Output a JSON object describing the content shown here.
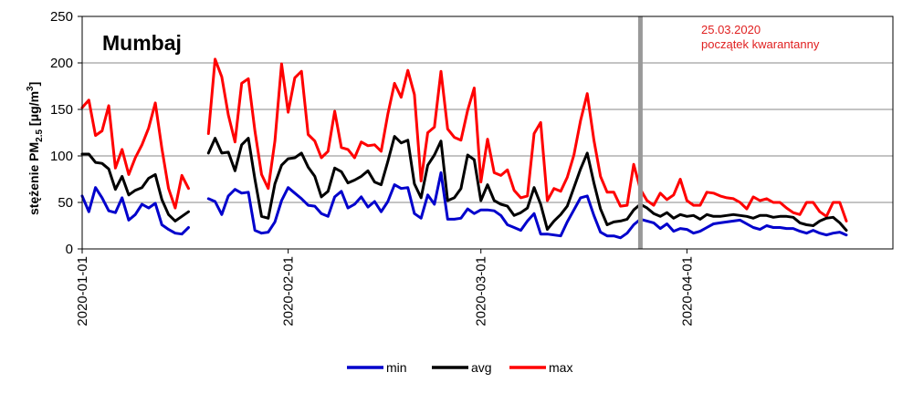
{
  "chart_data": {
    "type": "line",
    "title": "Mumbaj",
    "ylabel_main": "stężenie PM",
    "ylabel_sub": "2.5",
    "ylabel_unit": " [μg/m",
    "ylabel_sup": "3",
    "ylabel_close": "]",
    "ylim": [
      0,
      250
    ],
    "yticks": [
      0,
      50,
      100,
      150,
      200,
      250
    ],
    "xlim": [
      0,
      122
    ],
    "grid": true,
    "legend_position": "bottom-center",
    "x_ticks": [
      {
        "x": 0,
        "label": "2020-01-01"
      },
      {
        "x": 31,
        "label": "2020-02-01"
      },
      {
        "x": 60,
        "label": "2020-03-01"
      },
      {
        "x": 91,
        "label": "2020-04-01"
      }
    ],
    "event": {
      "x": 84,
      "line1": "25.03.2020",
      "line2": "początek kwarantanny"
    },
    "colors": {
      "min": "#0000cc",
      "avg": "#000000",
      "max": "#ff0000",
      "event": "#999999",
      "annotation": "#e02020"
    },
    "series": [
      {
        "name": "min",
        "key": "min",
        "values": [
          57,
          40,
          66,
          55,
          41,
          39,
          55,
          31,
          37,
          48,
          44,
          49,
          26,
          21,
          17,
          16,
          23,
          null,
          null,
          54,
          51,
          37,
          57,
          64,
          60,
          61,
          20,
          17,
          18,
          29,
          52,
          66,
          60,
          54,
          47,
          46,
          38,
          35,
          56,
          62,
          44,
          48,
          56,
          45,
          51,
          40,
          51,
          69,
          65,
          66,
          38,
          33,
          58,
          48,
          82,
          32,
          32,
          33,
          43,
          38,
          42,
          42,
          41,
          36,
          26,
          23,
          20,
          30,
          38,
          16,
          16,
          15,
          14,
          29,
          42,
          55,
          57,
          36,
          18,
          14,
          14,
          12,
          17,
          26,
          32,
          30,
          28,
          22,
          27,
          19,
          22,
          21,
          17,
          19,
          23,
          27,
          28,
          29,
          30,
          31,
          27,
          23,
          21,
          25,
          23,
          23,
          22,
          22,
          19,
          17,
          20,
          17,
          15,
          17,
          18,
          15
        ],
        "note": "values per day index 0..115"
      },
      {
        "name": "avg",
        "key": "avg",
        "values": [
          102,
          102,
          93,
          92,
          86,
          64,
          78,
          58,
          63,
          66,
          76,
          80,
          53,
          37,
          30,
          35,
          40,
          null,
          null,
          103,
          119,
          103,
          104,
          84,
          112,
          119,
          75,
          35,
          33,
          70,
          90,
          97,
          98,
          103,
          88,
          78,
          56,
          62,
          87,
          83,
          71,
          74,
          78,
          84,
          72,
          69,
          94,
          121,
          114,
          117,
          70,
          55,
          90,
          101,
          116,
          52,
          55,
          65,
          101,
          96,
          52,
          69,
          52,
          48,
          46,
          36,
          39,
          44,
          66,
          48,
          21,
          30,
          37,
          46,
          66,
          86,
          103,
          71,
          43,
          26,
          29,
          30,
          32,
          42,
          48,
          44,
          38,
          35,
          39,
          33,
          37,
          35,
          36,
          32,
          37,
          35,
          35,
          36,
          37,
          36,
          35,
          33,
          36,
          36,
          34,
          35,
          35,
          34,
          28,
          26,
          25,
          30,
          33,
          34,
          28,
          20
        ]
      },
      {
        "name": "max",
        "key": "max",
        "values": [
          152,
          160,
          122,
          127,
          154,
          87,
          107,
          80,
          98,
          112,
          130,
          157,
          108,
          65,
          44,
          79,
          65,
          null,
          null,
          124,
          204,
          185,
          144,
          115,
          178,
          183,
          127,
          80,
          65,
          116,
          199,
          147,
          184,
          191,
          123,
          116,
          98,
          105,
          148,
          109,
          107,
          98,
          115,
          111,
          112,
          105,
          145,
          178,
          163,
          192,
          166,
          73,
          125,
          131,
          191,
          129,
          120,
          117,
          149,
          173,
          72,
          118,
          82,
          79,
          85,
          63,
          55,
          57,
          124,
          136,
          52,
          65,
          62,
          77,
          101,
          138,
          167,
          117,
          78,
          61,
          61,
          46,
          47,
          91,
          64,
          52,
          47,
          60,
          53,
          58,
          75,
          52,
          47,
          47,
          61,
          60,
          57,
          55,
          54,
          50,
          43,
          56,
          52,
          54,
          50,
          50,
          44,
          39,
          37,
          50,
          50,
          40,
          35,
          50,
          50,
          30
        ]
      }
    ]
  },
  "legend": [
    {
      "label": "min",
      "key": "min"
    },
    {
      "label": "avg",
      "key": "avg"
    },
    {
      "label": "max",
      "key": "max"
    }
  ]
}
